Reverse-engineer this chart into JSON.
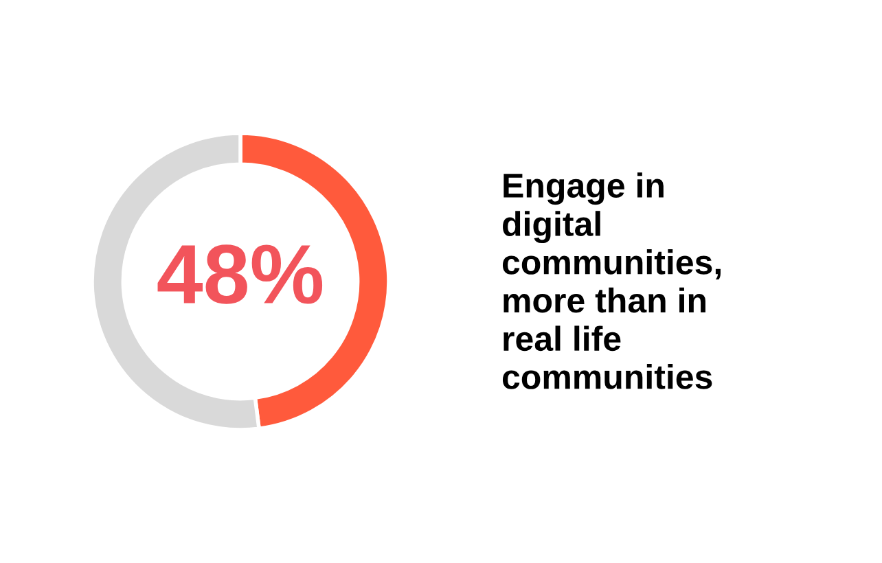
{
  "chart_data": {
    "type": "donut",
    "title": "Engage in\ndigital\ncommunities,\nmore than in\nreal life\ncommunities",
    "categories": [
      null,
      null
    ],
    "values": [
      48,
      52
    ],
    "colors": [
      "#ff5a3c",
      "#d9d9d9"
    ],
    "value_labels": [
      "48%",
      null
    ],
    "legend": false
  }
}
